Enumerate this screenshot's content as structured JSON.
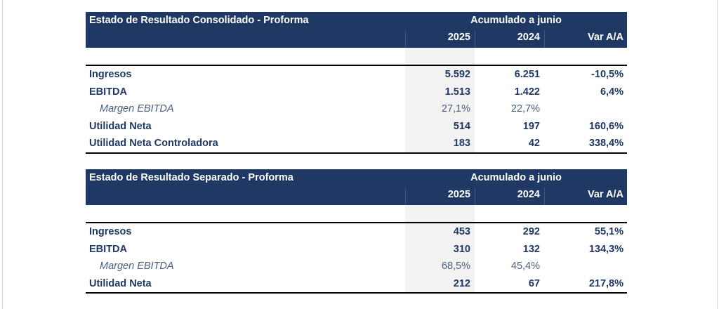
{
  "tables": [
    {
      "title": "Estado de Resultado Consolidado - Proforma",
      "period": "Acumulado a junio",
      "columns": [
        "2025",
        "2024",
        "Var A/A"
      ],
      "rows": [
        {
          "label": "Ingresos",
          "v2025": "5.592",
          "v2024": "6.251",
          "var": "-10,5%"
        },
        {
          "label": "EBITDA",
          "v2025": "1.513",
          "v2024": "1.422",
          "var": "6,4%"
        },
        {
          "label": "Margen EBITDA",
          "v2025": "27,1%",
          "v2024": "22,7%",
          "var": ""
        },
        {
          "label": "Utilidad Neta",
          "v2025": "514",
          "v2024": "197",
          "var": "160,6%"
        },
        {
          "label": "Utilidad Neta Controladora",
          "v2025": "183",
          "v2024": "42",
          "var": "338,4%"
        }
      ]
    },
    {
      "title": "Estado de Resultado Separado - Proforma",
      "period": "Acumulado a junio",
      "columns": [
        "2025",
        "2024",
        "Var A/A"
      ],
      "rows": [
        {
          "label": "Ingresos",
          "v2025": "453",
          "v2024": "292",
          "var": "55,1%"
        },
        {
          "label": "EBITDA",
          "v2025": "310",
          "v2024": "132",
          "var": "134,3%"
        },
        {
          "label": "Margen EBITDA",
          "v2025": "68,5%",
          "v2024": "45,4%",
          "var": ""
        },
        {
          "label": "Utilidad Neta",
          "v2025": "212",
          "v2024": "67",
          "var": "217,8%"
        }
      ]
    }
  ],
  "colors": {
    "header_bg": "#1f3864",
    "header_text": "#ffffff",
    "label_text": "#1f3864",
    "sub_text": "#4a5f7e",
    "shade": "#f2f2f2"
  }
}
